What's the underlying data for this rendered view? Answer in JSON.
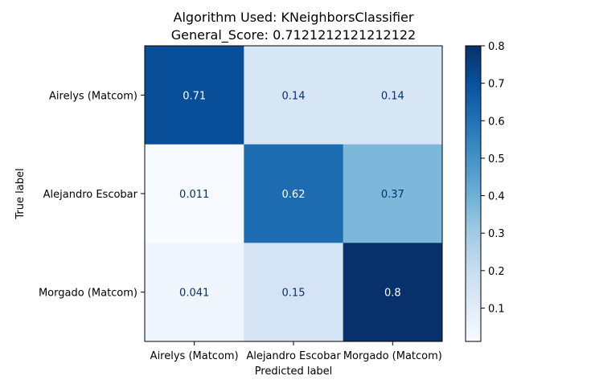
{
  "chart_data": {
    "type": "heatmap",
    "title_line1": "Algorithm Used: KNeighborsClassifier",
    "title_line2": "General_Score: 0.7121212121212122",
    "xlabel": "Predicted label",
    "ylabel": "True label",
    "x_categories": [
      "Airelys (Matcom)",
      "Alejandro Escobar",
      "Morgado (Matcom)"
    ],
    "y_categories": [
      "Airelys (Matcom)",
      "Alejandro Escobar",
      "Morgado (Matcom)"
    ],
    "values": [
      [
        0.71,
        0.14,
        0.14
      ],
      [
        0.011,
        0.62,
        0.37
      ],
      [
        0.041,
        0.15,
        0.8
      ]
    ],
    "cell_labels": [
      [
        "0.71",
        "0.14",
        "0.14"
      ],
      [
        "0.011",
        "0.62",
        "0.37"
      ],
      [
        "0.041",
        "0.15",
        "0.8"
      ]
    ],
    "colormap": "Blues",
    "colorbar": {
      "min": 0.011,
      "max": 0.8,
      "ticks": [
        0.1,
        0.2,
        0.3,
        0.4,
        0.5,
        0.6,
        0.7,
        0.8
      ],
      "tick_labels": [
        "0.1",
        "0.2",
        "0.3",
        "0.4",
        "0.5",
        "0.6",
        "0.7",
        "0.8"
      ]
    }
  }
}
